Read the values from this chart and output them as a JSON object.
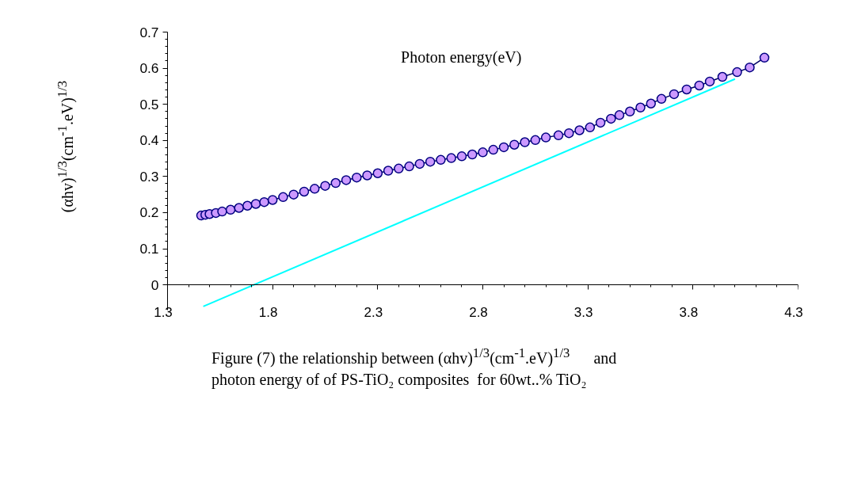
{
  "chart_data": {
    "type": "line",
    "xlabel": "Photon energy(eV)",
    "ylabel": "(αhv)$^{1/3}$(cm$^{-1}$.eV)$^{1/3}$",
    "annotations": [
      "Figure (7) the relationship between (αhv)$^{1/3}$(cm$^{-1}$.eV)$^{1/3}$      and",
      "photon energy of of PS-TiO₂ composites  for 60wt..% TiO₂"
    ],
    "series": [
      {
        "marker": "circle",
        "color": "#cc99ff",
        "x": [
          1.46,
          1.48,
          1.5,
          1.53,
          1.56,
          1.6,
          1.64,
          1.68,
          1.72,
          1.76,
          1.8,
          1.85,
          1.9,
          1.95,
          2.0,
          2.05,
          2.1,
          2.15,
          2.2,
          2.25,
          2.3,
          2.35,
          2.4,
          2.45,
          2.5,
          2.55,
          2.6,
          2.65,
          2.7,
          2.75,
          2.8,
          2.85,
          2.9,
          2.95,
          3.0,
          3.05,
          3.1,
          3.16,
          3.21,
          3.26,
          3.31,
          3.36,
          3.41,
          3.45,
          3.5,
          3.55,
          3.6,
          3.65,
          3.71,
          3.77,
          3.83,
          3.88,
          3.94,
          4.01,
          4.07,
          4.14
        ],
        "values": [
          0.192,
          0.194,
          0.196,
          0.199,
          0.203,
          0.208,
          0.213,
          0.219,
          0.224,
          0.229,
          0.235,
          0.243,
          0.25,
          0.258,
          0.266,
          0.274,
          0.282,
          0.29,
          0.297,
          0.303,
          0.309,
          0.316,
          0.322,
          0.328,
          0.335,
          0.341,
          0.346,
          0.351,
          0.356,
          0.361,
          0.367,
          0.374,
          0.381,
          0.388,
          0.395,
          0.401,
          0.408,
          0.414,
          0.42,
          0.428,
          0.436,
          0.449,
          0.46,
          0.47,
          0.48,
          0.491,
          0.502,
          0.515,
          0.528,
          0.541,
          0.552,
          0.563,
          0.576,
          0.589,
          0.602,
          0.629
        ]
      },
      {
        "marker": "none",
        "color": "#00ffff",
        "x": [
          1.47,
          4.0
        ],
        "values": [
          -0.06,
          0.57
        ]
      }
    ],
    "xlim": [
      1.3,
      4.3
    ],
    "xticks": [
      1.3,
      1.8,
      2.3,
      2.8,
      3.3,
      3.8,
      4.3
    ],
    "ylim": [
      -0.07,
      0.7
    ],
    "yticks": [
      0,
      0.1,
      0.2,
      0.3,
      0.4,
      0.5,
      0.6,
      0.7
    ],
    "grid": false
  }
}
